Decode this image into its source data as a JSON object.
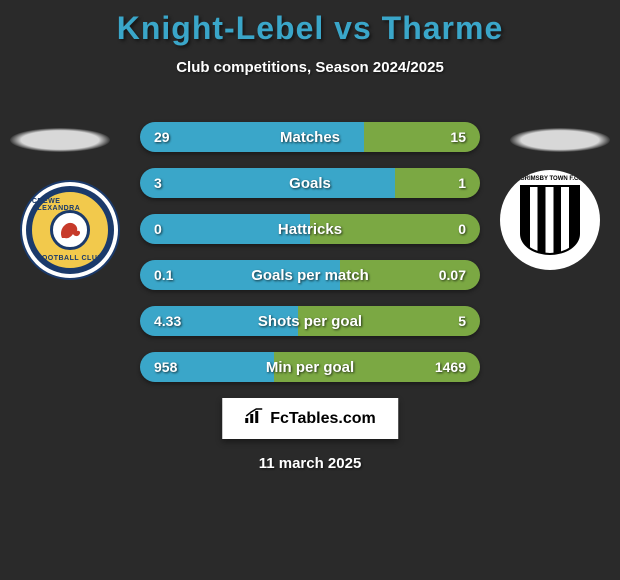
{
  "title": {
    "player1": "Knight-Lebel",
    "vs": "vs",
    "player2": "Tharme",
    "player1_color": "#3aa6c9",
    "player2_color": "#3aa6c9",
    "vs_color": "#3aa6c9",
    "fontsize": 32
  },
  "subtitle": "Club competitions, Season 2024/2025",
  "date": "11 march 2025",
  "branding": "FcTables.com",
  "colors": {
    "background": "#2a2a2a",
    "left_bar": "#3aa6c9",
    "right_bar": "#7ba843",
    "text": "#ffffff"
  },
  "player1_club": "CREWE ALEXANDRA",
  "player2_club": "GRIMSBY TOWN",
  "rows": [
    {
      "label": "Matches",
      "left": "29",
      "right": "15",
      "left_num": 29,
      "right_num": 15
    },
    {
      "label": "Goals",
      "left": "3",
      "right": "1",
      "left_num": 3,
      "right_num": 1
    },
    {
      "label": "Hattricks",
      "left": "0",
      "right": "0",
      "left_num": 0,
      "right_num": 0
    },
    {
      "label": "Goals per match",
      "left": "0.1",
      "right": "0.07",
      "left_num": 0.1,
      "right_num": 0.07
    },
    {
      "label": "Shots per goal",
      "left": "4.33",
      "right": "5",
      "left_num": 4.33,
      "right_num": 5
    },
    {
      "label": "Min per goal",
      "left": "958",
      "right": "1469",
      "left_num": 958,
      "right_num": 1469
    }
  ],
  "row_style": {
    "height": 30,
    "gap": 16,
    "radius": 15,
    "fontsize_label": 15,
    "fontsize_value": 14
  }
}
